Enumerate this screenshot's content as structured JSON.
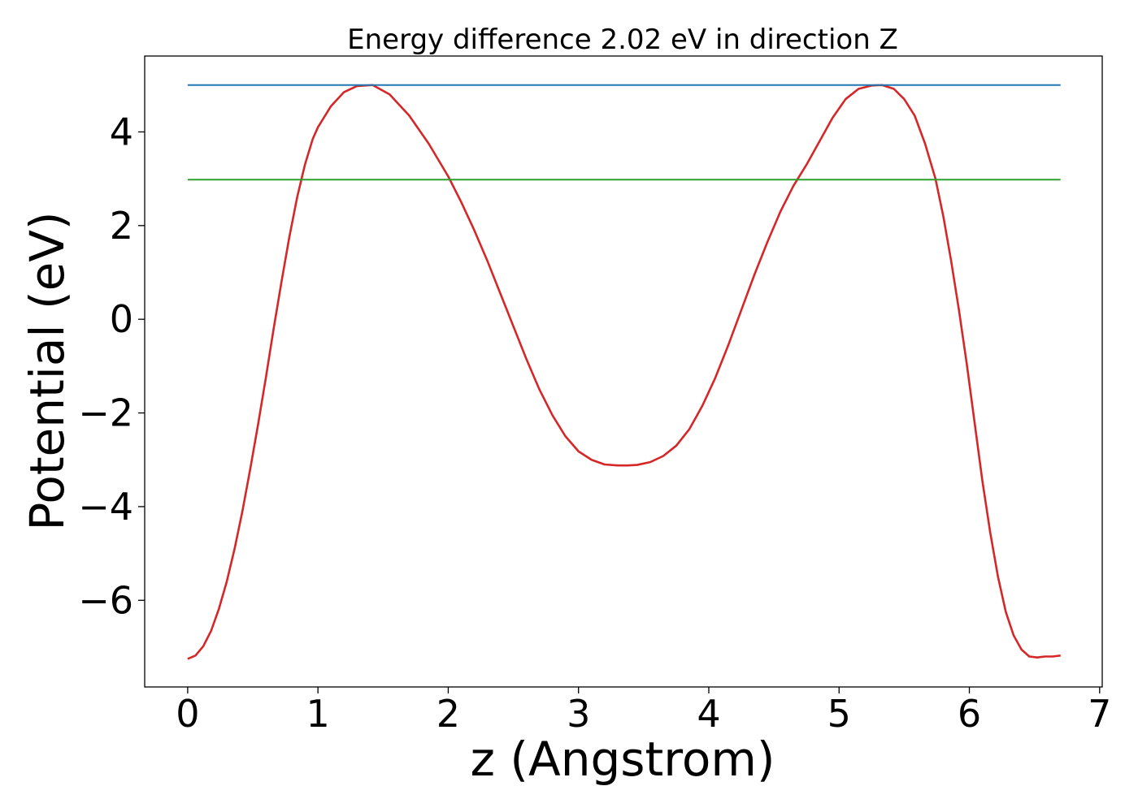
{
  "chart_data": {
    "type": "line",
    "title": "Energy difference 2.02 eV in direction Z",
    "xlabel": "z (Angstrom)",
    "ylabel": "Potential (eV)",
    "xlim": [
      -0.33,
      7.02
    ],
    "ylim": [
      -7.85,
      5.62
    ],
    "xticks": [
      0,
      1,
      2,
      3,
      4,
      5,
      6,
      7
    ],
    "xtick_labels": [
      "0",
      "1",
      "2",
      "3",
      "4",
      "5",
      "6",
      "7"
    ],
    "yticks": [
      -6,
      -4,
      -2,
      0,
      2,
      4
    ],
    "ytick_labels": [
      "−6",
      "−4",
      "−2",
      "0",
      "2",
      "4"
    ],
    "grid": false,
    "series": [
      {
        "color": "#d62728",
        "x": [
          0,
          0.06,
          0.12,
          0.18,
          0.24,
          0.3,
          0.36,
          0.42,
          0.48,
          0.54,
          0.6,
          0.66,
          0.72,
          0.78,
          0.84,
          0.9,
          0.96,
          1.0,
          1.1,
          1.2,
          1.3,
          1.42,
          1.55,
          1.7,
          1.85,
          2.0,
          2.1,
          2.2,
          2.3,
          2.4,
          2.5,
          2.6,
          2.7,
          2.8,
          2.9,
          3.0,
          3.1,
          3.2,
          3.3,
          3.38,
          3.45,
          3.55,
          3.65,
          3.75,
          3.85,
          3.95,
          4.05,
          4.15,
          4.25,
          4.35,
          4.45,
          4.55,
          4.65,
          4.75,
          4.85,
          4.95,
          5.05,
          5.15,
          5.25,
          5.33,
          5.42,
          5.5,
          5.58,
          5.66,
          5.74,
          5.8,
          5.86,
          5.92,
          5.98,
          6.04,
          6.1,
          6.16,
          6.22,
          6.28,
          6.34,
          6.4,
          6.46,
          6.52,
          6.58,
          6.64,
          6.7
        ],
        "y": [
          -7.25,
          -7.18,
          -6.98,
          -6.65,
          -6.18,
          -5.6,
          -4.9,
          -4.1,
          -3.2,
          -2.25,
          -1.25,
          -0.2,
          0.8,
          1.75,
          2.6,
          3.3,
          3.85,
          4.1,
          4.55,
          4.85,
          4.98,
          5.0,
          4.8,
          4.35,
          3.75,
          3.05,
          2.5,
          1.9,
          1.25,
          0.55,
          -0.15,
          -0.85,
          -1.5,
          -2.05,
          -2.5,
          -2.82,
          -3.0,
          -3.1,
          -3.12,
          -3.12,
          -3.11,
          -3.05,
          -2.92,
          -2.7,
          -2.35,
          -1.85,
          -1.25,
          -0.55,
          0.2,
          0.95,
          1.65,
          2.3,
          2.85,
          3.3,
          3.8,
          4.3,
          4.7,
          4.92,
          4.99,
          5.0,
          4.92,
          4.7,
          4.35,
          3.75,
          3.0,
          2.2,
          1.25,
          0.2,
          -0.95,
          -2.2,
          -3.45,
          -4.55,
          -5.5,
          -6.25,
          -6.75,
          -7.05,
          -7.2,
          -7.22,
          -7.2,
          -7.2,
          -7.18
        ]
      },
      {
        "color": "#1f77b4",
        "x": [
          0,
          6.7
        ],
        "y": [
          5.0,
          5.0
        ]
      },
      {
        "color": "#2ca02c",
        "x": [
          0,
          6.7
        ],
        "y": [
          2.98,
          2.98
        ]
      }
    ]
  }
}
